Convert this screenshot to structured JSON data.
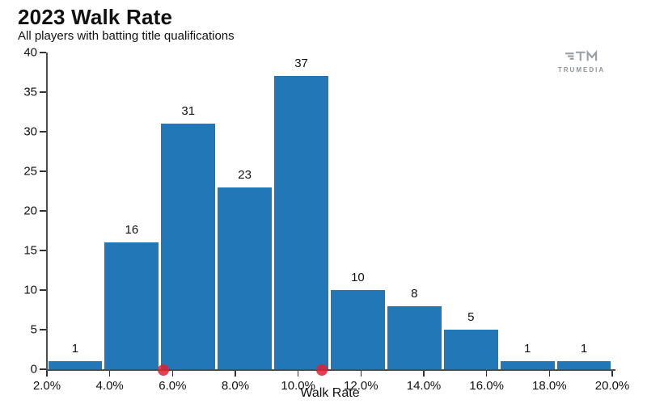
{
  "header": {
    "title": "2023 Walk Rate",
    "subtitle": "All players with batting title qualifications"
  },
  "logo": {
    "name": "trumedia-logo",
    "text": "TRUMEDIA"
  },
  "chart_data": {
    "type": "bar",
    "title": "2023 Walk Rate",
    "subtitle": "All players with batting title qualifications",
    "xlabel": "Walk Rate",
    "ylabel": "",
    "xlim": [
      2.0,
      20.0
    ],
    "ylim": [
      0,
      40
    ],
    "grid": false,
    "bin_start": 2.0,
    "bin_width": 1.8,
    "counts": [
      1,
      16,
      31,
      23,
      37,
      10,
      8,
      5,
      1,
      1
    ],
    "bar_labels": [
      "1",
      "16",
      "31",
      "23",
      "37",
      "10",
      "8",
      "5",
      "1",
      "1"
    ],
    "x_ticks": [
      {
        "value": 2.0,
        "label": "2.0%"
      },
      {
        "value": 4.0,
        "label": "4.0%"
      },
      {
        "value": 6.0,
        "label": "6.0%"
      },
      {
        "value": 8.0,
        "label": "8.0%"
      },
      {
        "value": 10.0,
        "label": "10.0%"
      },
      {
        "value": 12.0,
        "label": "12.0%"
      },
      {
        "value": 14.0,
        "label": "14.0%"
      },
      {
        "value": 16.0,
        "label": "16.0%"
      },
      {
        "value": 18.0,
        "label": "18.0%"
      },
      {
        "value": 20.0,
        "label": "20.0%"
      }
    ],
    "y_ticks": [
      {
        "value": 0,
        "label": "0"
      },
      {
        "value": 5,
        "label": "5"
      },
      {
        "value": 10,
        "label": "10"
      },
      {
        "value": 15,
        "label": "15"
      },
      {
        "value": 20,
        "label": "20"
      },
      {
        "value": 25,
        "label": "25"
      },
      {
        "value": 30,
        "label": "30"
      },
      {
        "value": 35,
        "label": "35"
      },
      {
        "value": 40,
        "label": "40"
      }
    ],
    "markers": [
      {
        "walk_rate": 5.7
      },
      {
        "walk_rate": 10.75
      }
    ],
    "colors": {
      "bar": "#2277b6",
      "marker": "rgba(227, 30, 49, 0.85)",
      "axis": "#4d4d4d",
      "text": "#111111"
    }
  }
}
